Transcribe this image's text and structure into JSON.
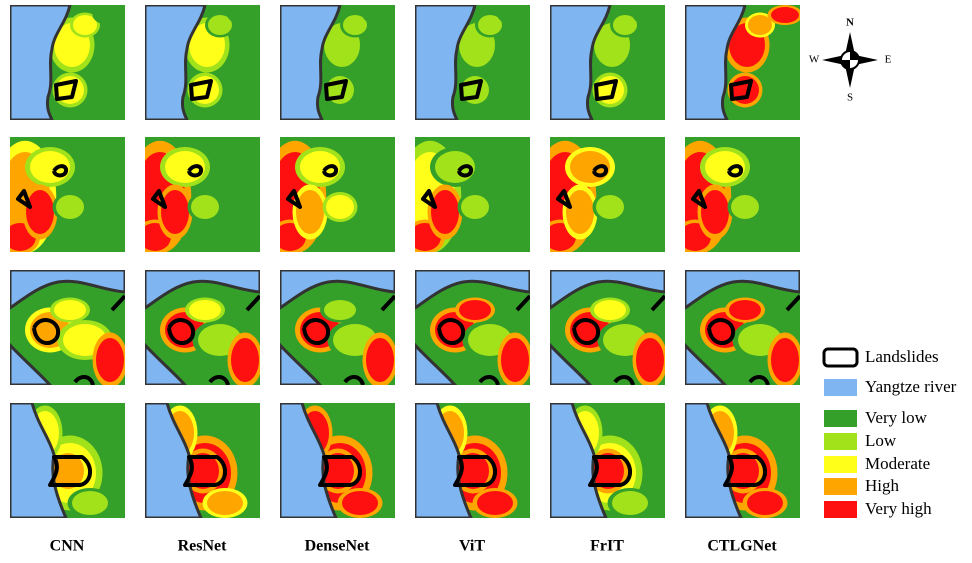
{
  "columns": [
    "CNN",
    "ResNet",
    "DenseNet",
    "ViT",
    "FrIT",
    "CTLGNet"
  ],
  "compass": {
    "north": "N",
    "east": "E",
    "south": "S",
    "west": "W"
  },
  "legend": [
    {
      "label": "Landslides",
      "color": "#ffffff"
    },
    {
      "label": "Yangtze river",
      "color": "#7fb6f2"
    },
    {
      "label": "Very low",
      "color": "#34a02a"
    },
    {
      "label": "Low",
      "color": "#a2e21a"
    },
    {
      "label": "Moderate",
      "color": "#ffff1a"
    },
    {
      "label": "High",
      "color": "#ffa500"
    },
    {
      "label": "Very high",
      "color": "#ff1010"
    }
  ]
}
